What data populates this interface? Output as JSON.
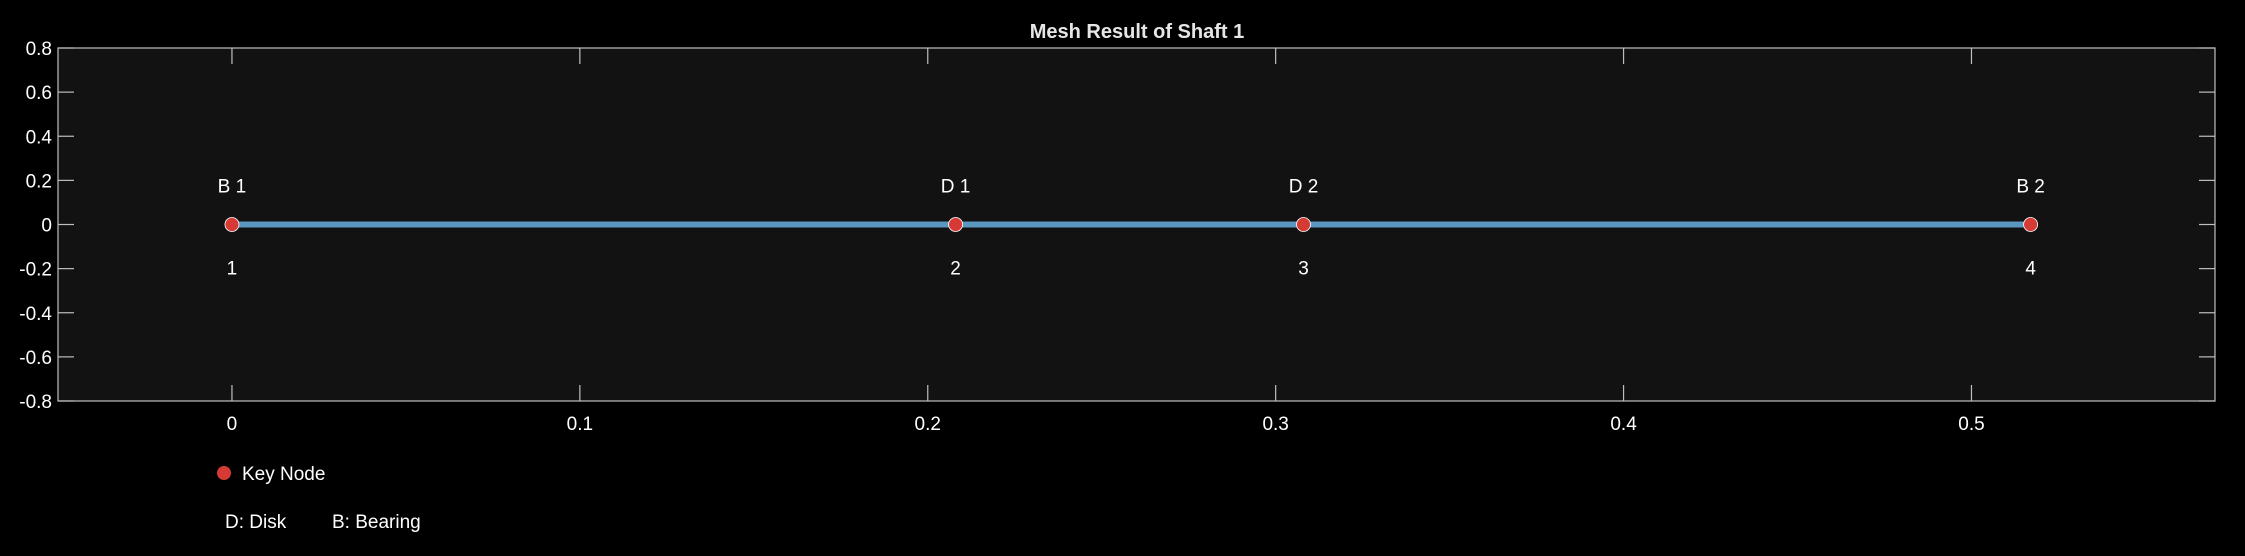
{
  "chart_data": {
    "type": "line",
    "title": "Mesh Result of Shaft 1",
    "xlabel": "",
    "ylabel": "",
    "xlim": [
      -0.05,
      0.57
    ],
    "ylim": [
      -0.8,
      0.8
    ],
    "xticks": [
      0,
      0.1,
      0.2,
      0.3,
      0.4,
      0.5
    ],
    "xtick_labels": [
      "0",
      "0.1",
      "0.2",
      "0.3",
      "0.4",
      "0.5"
    ],
    "yticks": [
      0.8,
      0.6,
      0.4,
      0.2,
      0,
      -0.2,
      -0.4,
      -0.6,
      -0.8
    ],
    "ytick_labels": [
      "0.8",
      "0.6",
      "0.4",
      "0.2",
      "0",
      "-0.2",
      "-0.4",
      "-0.6",
      "-0.8"
    ],
    "grid": false,
    "shaft": {
      "x": [
        0,
        0.208,
        0.308,
        0.517
      ],
      "y": [
        0,
        0,
        0,
        0
      ],
      "color": "#5b97c0"
    },
    "key_nodes": [
      {
        "x": 0,
        "y": 0,
        "element_label": "B 1",
        "node_number": "1"
      },
      {
        "x": 0.208,
        "y": 0,
        "element_label": "D 1",
        "node_number": "2"
      },
      {
        "x": 0.308,
        "y": 0,
        "element_label": "D 2",
        "node_number": "3"
      },
      {
        "x": 0.517,
        "y": 0,
        "element_label": "B 2",
        "node_number": "4"
      }
    ],
    "node_color": "#d63a34",
    "legend": {
      "placement": "bottom-left",
      "entries": [
        {
          "name": "Key Node",
          "marker": "circle",
          "color": "#d63a34"
        }
      ],
      "notes": [
        "D: Disk",
        "B: Bearing"
      ]
    },
    "colors": {
      "background": "#000000",
      "plot_background": "#121212",
      "axis": "#bfbfbf",
      "text": "#ffffff"
    }
  }
}
